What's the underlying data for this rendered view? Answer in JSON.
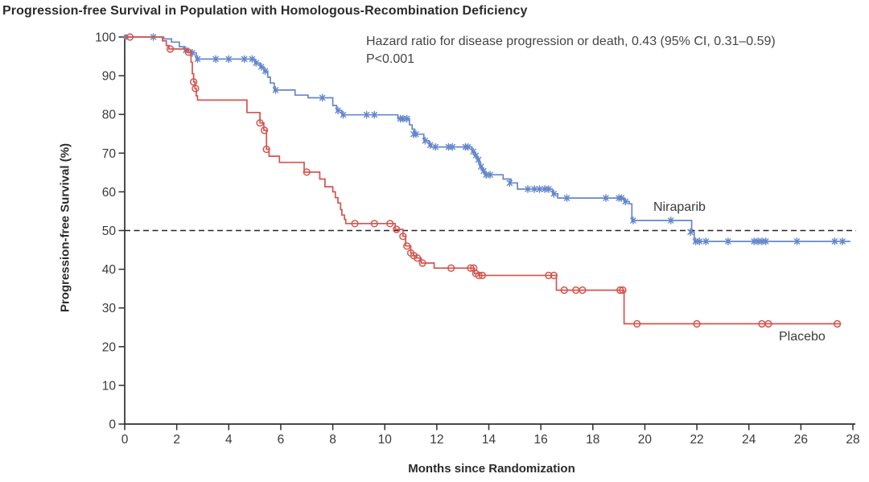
{
  "figure": {
    "title": "Progression-free Survival in Population with Homologous-Recombination Deficiency"
  },
  "annotation": {
    "line1": "Hazard ratio for disease progression or death, 0.43 (95% CI, 0.31–0.59)",
    "line2": "P<0.001"
  },
  "chart_data": {
    "type": "line",
    "subtype": "kaplan_meier_step",
    "title": "Progression-free Survival in Population with Homologous-Recombination Deficiency",
    "xlabel": "Months since Randomization",
    "ylabel": "Progression-free Survival (%)",
    "xlim": [
      0,
      28
    ],
    "ylim": [
      0,
      100
    ],
    "xticks": [
      0,
      2,
      4,
      6,
      8,
      10,
      12,
      14,
      16,
      18,
      20,
      22,
      24,
      26,
      28
    ],
    "yticks": [
      0,
      10,
      20,
      30,
      40,
      50,
      60,
      70,
      80,
      90,
      100
    ],
    "grid": false,
    "legend_position": "curve-end-labels",
    "annotation": "Hazard ratio for disease progression or death, 0.43 (95% CI, 0.31–0.59); P<0.001",
    "reference_line": {
      "y": 50,
      "style": "dashed",
      "color": "#262626"
    },
    "series": [
      {
        "name": "Niraparib",
        "color": "#6487cc",
        "marker": "asterisk",
        "start_dot": true,
        "steps": [
          [
            0,
            100
          ],
          [
            1.5,
            99.5
          ],
          [
            1.8,
            98.7
          ],
          [
            2.1,
            97.5
          ],
          [
            2.3,
            96.6
          ],
          [
            2.45,
            95.9
          ],
          [
            2.75,
            94.3
          ],
          [
            5.0,
            93.3
          ],
          [
            5.2,
            92.3
          ],
          [
            5.35,
            91.2
          ],
          [
            5.5,
            89.6
          ],
          [
            5.6,
            88.1
          ],
          [
            5.75,
            86.3
          ],
          [
            6.55,
            85.0
          ],
          [
            7.05,
            84.3
          ],
          [
            8.0,
            82.3
          ],
          [
            8.15,
            81.0
          ],
          [
            8.35,
            79.9
          ],
          [
            10.5,
            78.9
          ],
          [
            10.95,
            77.3
          ],
          [
            11.05,
            76.2
          ],
          [
            11.15,
            74.9
          ],
          [
            11.5,
            73.2
          ],
          [
            11.7,
            72.1
          ],
          [
            11.8,
            71.6
          ],
          [
            13.35,
            70.4
          ],
          [
            13.45,
            69.4
          ],
          [
            13.55,
            68.3
          ],
          [
            13.65,
            66.5
          ],
          [
            13.75,
            65.4
          ],
          [
            13.85,
            64.4
          ],
          [
            14.55,
            63.3
          ],
          [
            14.85,
            62.3
          ],
          [
            15.1,
            60.7
          ],
          [
            16.45,
            59.5
          ],
          [
            16.65,
            58.4
          ],
          [
            19.2,
            57.5
          ],
          [
            19.4,
            56.9
          ],
          [
            19.5,
            52.6
          ],
          [
            21.8,
            49.6
          ],
          [
            21.9,
            47.2
          ],
          [
            27.9,
            47.2
          ]
        ],
        "censors": [
          [
            1.1,
            100
          ],
          [
            2.35,
            96.6
          ],
          [
            2.6,
            95.9
          ],
          [
            2.8,
            94.3
          ],
          [
            3.5,
            94.3
          ],
          [
            4.0,
            94.3
          ],
          [
            4.6,
            94.3
          ],
          [
            4.9,
            94.3
          ],
          [
            5.05,
            93.3
          ],
          [
            5.25,
            92.3
          ],
          [
            5.4,
            91.2
          ],
          [
            5.8,
            86.3
          ],
          [
            7.6,
            84.3
          ],
          [
            8.2,
            81.0
          ],
          [
            8.4,
            79.9
          ],
          [
            9.3,
            79.9
          ],
          [
            9.6,
            79.9
          ],
          [
            10.6,
            78.9
          ],
          [
            10.7,
            78.9
          ],
          [
            10.85,
            78.9
          ],
          [
            11.1,
            74.9
          ],
          [
            11.2,
            74.9
          ],
          [
            11.55,
            73.2
          ],
          [
            11.75,
            72.1
          ],
          [
            11.95,
            71.6
          ],
          [
            12.45,
            71.6
          ],
          [
            12.6,
            71.6
          ],
          [
            13.1,
            71.6
          ],
          [
            13.2,
            71.6
          ],
          [
            13.4,
            70.4
          ],
          [
            13.5,
            69.4
          ],
          [
            13.6,
            68.3
          ],
          [
            13.7,
            66.5
          ],
          [
            13.8,
            65.4
          ],
          [
            13.9,
            64.4
          ],
          [
            14.05,
            64.4
          ],
          [
            14.8,
            62.3
          ],
          [
            15.5,
            60.7
          ],
          [
            15.75,
            60.7
          ],
          [
            15.95,
            60.7
          ],
          [
            16.15,
            60.7
          ],
          [
            16.3,
            60.7
          ],
          [
            16.5,
            59.5
          ],
          [
            17.0,
            58.4
          ],
          [
            18.5,
            58.4
          ],
          [
            19.0,
            58.4
          ],
          [
            19.1,
            58.4
          ],
          [
            19.25,
            57.5
          ],
          [
            19.55,
            52.6
          ],
          [
            21.0,
            52.6
          ],
          [
            21.75,
            49.6
          ],
          [
            21.95,
            47.2
          ],
          [
            22.1,
            47.2
          ],
          [
            22.35,
            47.2
          ],
          [
            23.2,
            47.2
          ],
          [
            24.2,
            47.2
          ],
          [
            24.35,
            47.2
          ],
          [
            24.5,
            47.2
          ],
          [
            24.65,
            47.2
          ],
          [
            25.85,
            47.2
          ],
          [
            27.3,
            47.2
          ],
          [
            27.6,
            47.2
          ]
        ]
      },
      {
        "name": "Placebo",
        "color": "#d5544e",
        "marker": "open_circle",
        "start_dot": false,
        "steps": [
          [
            0,
            100
          ],
          [
            1.45,
            99.0
          ],
          [
            1.6,
            97.8
          ],
          [
            1.7,
            96.9
          ],
          [
            2.4,
            96.1
          ],
          [
            2.55,
            93.5
          ],
          [
            2.6,
            90.5
          ],
          [
            2.65,
            88.4
          ],
          [
            2.7,
            86.7
          ],
          [
            2.75,
            84.8
          ],
          [
            2.8,
            83.7
          ],
          [
            4.7,
            80.5
          ],
          [
            5.2,
            77.8
          ],
          [
            5.35,
            75.9
          ],
          [
            5.45,
            71.0
          ],
          [
            5.55,
            69.2
          ],
          [
            5.95,
            67.6
          ],
          [
            6.9,
            65.1
          ],
          [
            7.5,
            63.3
          ],
          [
            7.7,
            61.3
          ],
          [
            8.0,
            60.0
          ],
          [
            8.1,
            58.5
          ],
          [
            8.2,
            57.1
          ],
          [
            8.3,
            55.4
          ],
          [
            8.35,
            54.0
          ],
          [
            8.45,
            52.9
          ],
          [
            8.5,
            51.8
          ],
          [
            10.4,
            50.3
          ],
          [
            10.7,
            48.5
          ],
          [
            10.8,
            46.0
          ],
          [
            11.0,
            44.2
          ],
          [
            11.1,
            43.5
          ],
          [
            11.2,
            42.9
          ],
          [
            11.4,
            41.6
          ],
          [
            11.9,
            40.3
          ],
          [
            13.45,
            38.9
          ],
          [
            13.65,
            38.4
          ],
          [
            16.6,
            34.6
          ],
          [
            19.2,
            25.9
          ],
          [
            27.5,
            25.9
          ]
        ],
        "censors": [
          [
            0.2,
            100
          ],
          [
            1.75,
            96.9
          ],
          [
            2.45,
            96.1
          ],
          [
            2.65,
            88.4
          ],
          [
            2.72,
            86.7
          ],
          [
            5.2,
            77.8
          ],
          [
            5.37,
            75.9
          ],
          [
            5.45,
            71.0
          ],
          [
            7.0,
            65.1
          ],
          [
            8.85,
            51.8
          ],
          [
            9.6,
            51.8
          ],
          [
            10.2,
            51.8
          ],
          [
            10.45,
            50.3
          ],
          [
            10.7,
            48.5
          ],
          [
            10.85,
            46.0
          ],
          [
            11.0,
            44.2
          ],
          [
            11.12,
            43.5
          ],
          [
            11.25,
            42.9
          ],
          [
            11.45,
            41.6
          ],
          [
            12.55,
            40.3
          ],
          [
            13.3,
            40.3
          ],
          [
            13.42,
            40.3
          ],
          [
            13.5,
            38.9
          ],
          [
            13.62,
            38.4
          ],
          [
            13.75,
            38.4
          ],
          [
            16.3,
            38.4
          ],
          [
            16.5,
            38.4
          ],
          [
            16.9,
            34.6
          ],
          [
            17.35,
            34.6
          ],
          [
            17.6,
            34.6
          ],
          [
            19.05,
            34.6
          ],
          [
            19.15,
            34.6
          ],
          [
            19.7,
            25.9
          ],
          [
            22.0,
            25.9
          ],
          [
            24.5,
            25.9
          ],
          [
            24.75,
            25.9
          ],
          [
            27.4,
            25.9
          ]
        ]
      }
    ]
  },
  "colors": {
    "niraparib": "#6487cc",
    "placebo": "#d5544e",
    "axis": "#2f2f2f",
    "tick_text": "#3a3a3a"
  }
}
